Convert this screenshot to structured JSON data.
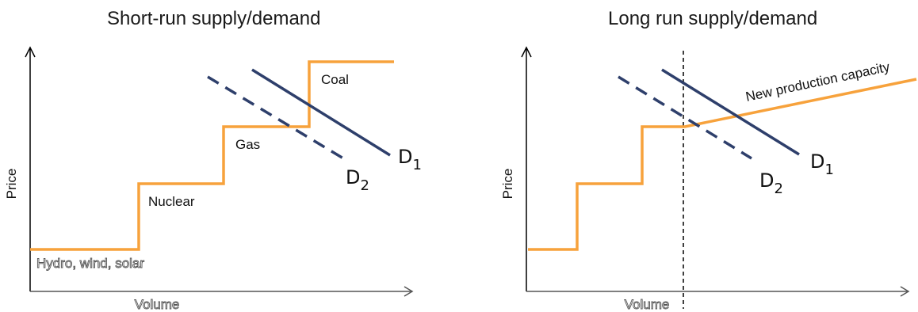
{
  "left": {
    "title": "Short-run supply/demand",
    "y_axis_label": "Price",
    "x_axis_label": "Volume",
    "supply_segments": [
      "Hydro, wind,  solar",
      "Nuclear",
      "Gas",
      "Coal"
    ],
    "demand": [
      {
        "label": "D",
        "subscript": "1",
        "style": "solid"
      },
      {
        "label": "D",
        "subscript": "2",
        "style": "dashed"
      }
    ]
  },
  "right": {
    "title": "Long run supply/demand",
    "y_axis_label": "Price",
    "x_axis_label": "Volume",
    "new_capacity_label": "New production capacity",
    "demand": [
      {
        "label": "D",
        "subscript": "1",
        "style": "solid"
      },
      {
        "label": "D",
        "subscript": "2",
        "style": "dashed"
      }
    ]
  },
  "colors": {
    "supply": "#f7a23c",
    "demand": "#2e3f6b",
    "axis": "#000000",
    "divider": "#000000"
  }
}
